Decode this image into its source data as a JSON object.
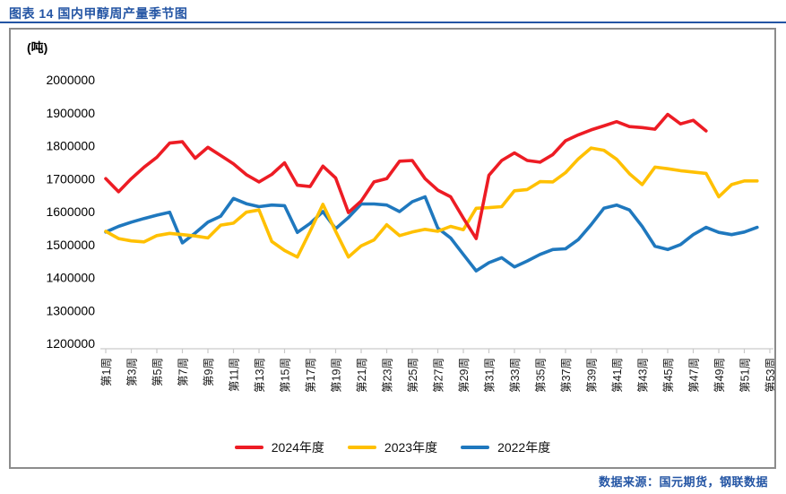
{
  "header": {
    "title": "图表 14 国内甲醇周产量季节图"
  },
  "footer": {
    "source": "数据来源：国元期货，钢联数据"
  },
  "colors": {
    "title_blue": "#2455a4",
    "frame_gray": "#8c8c8c",
    "axis_gray": "#c9c9c9",
    "series_2024": "#ed1c24",
    "series_2023": "#ffc000",
    "series_2022": "#1f78be"
  },
  "chart_data": {
    "type": "line",
    "title": "国内甲醇周产量季节图",
    "unit_label": "(吨)",
    "ylim": [
      1200000,
      2000000
    ],
    "ytick_step": 100000,
    "ytick_labels": [
      "2000000",
      "1900000",
      "1800000",
      "1700000",
      "1600000",
      "1500000",
      "1400000",
      "1300000",
      "1200000"
    ],
    "x_weeks_total": 53,
    "x_tick_labels": [
      "第1周",
      "第3周",
      "第5周",
      "第7周",
      "第9周",
      "第11周",
      "第13周",
      "第15周",
      "第17周",
      "第19周",
      "第21周",
      "第23周",
      "第25周",
      "第27周",
      "第29周",
      "第31周",
      "第33周",
      "第35周",
      "第37周",
      "第39周",
      "第41周",
      "第43周",
      "第45周",
      "第47周",
      "第49周",
      "第51周",
      "第53周"
    ],
    "grid": false,
    "legend_position": "bottom",
    "series": [
      {
        "name": "2024年度",
        "color": "#ed1c24",
        "start_week": 1,
        "values": [
          1700000,
          1660000,
          1700000,
          1735000,
          1765000,
          1808000,
          1812000,
          1762000,
          1795000,
          1770000,
          1745000,
          1712000,
          1690000,
          1713000,
          1748000,
          1680000,
          1676000,
          1738000,
          1702000,
          1597000,
          1632000,
          1690000,
          1700000,
          1753000,
          1755000,
          1700000,
          1665000,
          1645000,
          1580000,
          1518000,
          1710000,
          1755000,
          1778000,
          1755000,
          1750000,
          1773000,
          1815000,
          1833000,
          1848000,
          1860000,
          1873000,
          1858000,
          1855000,
          1850000,
          1895000,
          1866000,
          1877000,
          1845000
        ]
      },
      {
        "name": "2023年度",
        "color": "#ffc000",
        "start_week": 1,
        "values": [
          1540000,
          1518000,
          1511000,
          1508000,
          1527000,
          1534000,
          1530000,
          1526000,
          1520000,
          1559000,
          1565000,
          1598000,
          1605000,
          1509000,
          1482000,
          1462000,
          1540000,
          1622000,
          1540000,
          1462000,
          1496000,
          1514000,
          1560000,
          1527000,
          1538000,
          1546000,
          1540000,
          1555000,
          1545000,
          1610000,
          1612000,
          1615000,
          1663000,
          1667000,
          1691000,
          1690000,
          1718000,
          1760000,
          1793000,
          1786000,
          1759000,
          1715000,
          1682000,
          1735000,
          1730000,
          1724000,
          1720000,
          1716000,
          1645000,
          1682000,
          1693000,
          1693000
        ]
      },
      {
        "name": "2022年度",
        "color": "#1f78be",
        "start_week": 1,
        "values": [
          1538000,
          1555000,
          1568000,
          1579000,
          1589000,
          1598000,
          1505000,
          1535000,
          1568000,
          1586000,
          1640000,
          1624000,
          1615000,
          1620000,
          1618000,
          1537000,
          1564000,
          1600000,
          1548000,
          1582000,
          1623000,
          1623000,
          1620000,
          1600000,
          1630000,
          1645000,
          1550000,
          1520000,
          1470000,
          1420000,
          1445000,
          1460000,
          1432000,
          1450000,
          1470000,
          1485000,
          1487000,
          1515000,
          1560000,
          1610000,
          1620000,
          1605000,
          1555000,
          1495000,
          1485000,
          1500000,
          1530000,
          1552000,
          1537000,
          1530000,
          1538000,
          1552000
        ]
      }
    ]
  }
}
